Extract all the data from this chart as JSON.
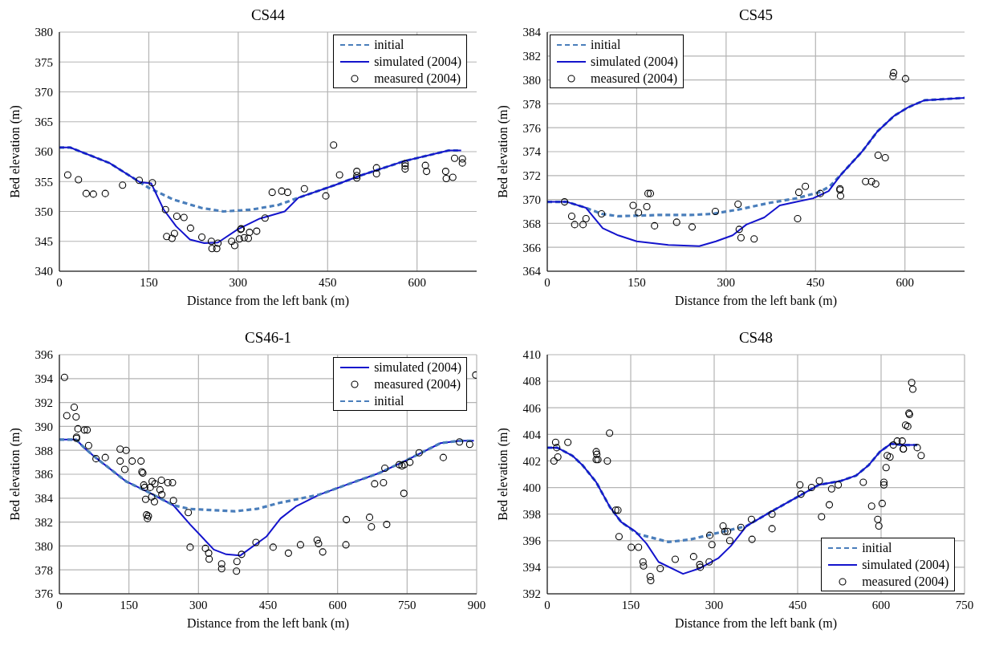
{
  "chart_data": [
    {
      "type": "line",
      "title": "CS44",
      "xlabel": "Distance from the left bank (m)",
      "ylabel": "Bed elevation (m)",
      "xlim": [
        0,
        700
      ],
      "xticks": [
        0,
        150,
        300,
        450,
        600
      ],
      "ylim": [
        340,
        380
      ],
      "yticks": [
        340,
        345,
        350,
        355,
        360,
        365,
        370,
        375,
        380
      ],
      "grid": true,
      "legend": "top right",
      "series": [
        {
          "name": "initial",
          "type": "line",
          "line_style": "dashed",
          "color": "#4a7ebb",
          "x": [
            0,
            18,
            84,
            135,
            149,
            191,
            238,
            275,
            322,
            368,
            401,
            462,
            508,
            578,
            653,
            674
          ],
          "values": [
            360.7,
            360.7,
            358.1,
            354.9,
            354.0,
            352.0,
            350.6,
            350.0,
            350.3,
            351.1,
            352.3,
            354.4,
            356.1,
            358.4,
            360.2,
            360.2
          ]
        },
        {
          "name": "simulated (2004)",
          "type": "line",
          "line_style": "solid",
          "color": "#1414cc",
          "x": [
            0,
            18,
            84,
            135,
            154,
            175,
            196,
            219,
            243,
            266,
            299,
            336,
            378,
            401,
            462,
            508,
            578,
            653,
            674
          ],
          "values": [
            360.7,
            360.7,
            358.1,
            354.9,
            354.7,
            350.3,
            347.5,
            345.3,
            344.7,
            344.8,
            347.0,
            348.8,
            350.0,
            352.3,
            354.4,
            356.1,
            358.4,
            360.2,
            360.2
          ]
        },
        {
          "name": "measured (2004)",
          "type": "scatter",
          "marker": "circle",
          "color": "#000000",
          "x": [
            14,
            32,
            45,
            57,
            77,
            106,
            134,
            156,
            178,
            180,
            189,
            193,
            197,
            209,
            220,
            239,
            255,
            256,
            264,
            266,
            289,
            294,
            304,
            305,
            302,
            310,
            317,
            319,
            331,
            345,
            357,
            373,
            383,
            411,
            447,
            460,
            470,
            499,
            499,
            499,
            532,
            532,
            580,
            580,
            580,
            614,
            616,
            648,
            649,
            660,
            663,
            676,
            676
          ],
          "values": [
            356.1,
            355.3,
            353.0,
            352.9,
            353.0,
            354.4,
            355.2,
            354.8,
            350.3,
            345.8,
            345.5,
            346.3,
            349.2,
            349.0,
            347.2,
            345.7,
            345.0,
            343.8,
            343.8,
            344.7,
            345.0,
            344.3,
            347.0,
            347.1,
            345.4,
            345.6,
            345.5,
            346.5,
            346.7,
            348.9,
            353.2,
            353.4,
            353.2,
            353.8,
            352.6,
            361.1,
            356.1,
            356.7,
            355.6,
            356.0,
            357.3,
            356.3,
            358.0,
            357.6,
            357.1,
            357.7,
            356.7,
            356.7,
            355.5,
            355.7,
            358.9,
            358.8,
            358.1
          ]
        }
      ]
    },
    {
      "type": "line",
      "title": "CS45",
      "xlabel": "Distance from the left bank (m)",
      "ylabel": "Bed elevation (m)",
      "xlim": [
        0,
        700
      ],
      "xticks": [
        0,
        150,
        300,
        450,
        600
      ],
      "ylim": [
        364,
        384
      ],
      "yticks": [
        364,
        366,
        368,
        370,
        372,
        374,
        376,
        378,
        380,
        382,
        384
      ],
      "grid": true,
      "legend": "top left",
      "series": [
        {
          "name": "initial",
          "type": "line",
          "line_style": "dashed",
          "color": "#4a7ebb",
          "x": [
            0,
            33,
            65,
            91,
            119,
            185,
            241,
            278,
            325,
            371,
            418,
            456,
            474,
            493,
            528,
            554,
            582,
            605,
            633,
            700
          ],
          "values": [
            369.8,
            369.8,
            369.3,
            368.8,
            368.6,
            368.7,
            368.7,
            368.8,
            369.2,
            369.7,
            370.1,
            370.6,
            371.1,
            372.1,
            374.0,
            375.7,
            377.0,
            377.7,
            378.3,
            378.5
          ]
        },
        {
          "name": "simulated (2004)",
          "type": "line",
          "line_style": "solid",
          "color": "#1414cc",
          "x": [
            0,
            33,
            65,
            93,
            119,
            150,
            203,
            255,
            283,
            311,
            334,
            364,
            390,
            418,
            446,
            472,
            493,
            528,
            554,
            582,
            605,
            633,
            700
          ],
          "values": [
            369.8,
            369.8,
            369.3,
            367.6,
            367.0,
            366.5,
            366.2,
            366.1,
            366.5,
            367.0,
            367.9,
            368.5,
            369.5,
            369.8,
            370.1,
            370.7,
            372.1,
            374.0,
            375.7,
            377.0,
            377.7,
            378.3,
            378.5
          ]
        },
        {
          "name": "measured (2004)",
          "type": "scatter",
          "marker": "circle",
          "color": "#000000",
          "x": [
            29,
            41,
            46,
            60,
            65,
            91,
            144,
            153,
            167,
            169,
            173,
            180,
            217,
            243,
            282,
            320,
            322,
            325,
            347,
            420,
            422,
            433,
            458,
            491,
            491,
            492,
            534,
            544,
            551,
            555,
            567,
            581,
            580,
            601
          ],
          "values": [
            369.8,
            368.6,
            367.9,
            367.9,
            368.4,
            368.8,
            369.5,
            368.9,
            369.4,
            370.5,
            370.5,
            367.8,
            368.1,
            367.7,
            369.0,
            369.6,
            367.5,
            366.8,
            366.7,
            368.4,
            370.6,
            371.1,
            370.5,
            370.9,
            370.8,
            370.3,
            371.5,
            371.5,
            371.3,
            373.7,
            373.5,
            380.6,
            380.3,
            380.1
          ]
        }
      ]
    },
    {
      "type": "line",
      "title": "CS46-1",
      "xlabel": "Distance from the left bank (m)",
      "ylabel": "Bed elevation (m)",
      "xlim": [
        0,
        900
      ],
      "xticks": [
        0,
        150,
        300,
        450,
        600,
        750,
        900
      ],
      "ylim": [
        376,
        396
      ],
      "yticks": [
        376,
        378,
        380,
        382,
        384,
        386,
        388,
        390,
        392,
        394,
        396
      ],
      "grid": true,
      "legend": "top right",
      "series": [
        {
          "name": "simulated (2004)",
          "type": "line",
          "line_style": "solid",
          "color": "#1414cc",
          "x": [
            0,
            36,
            54,
            78,
            144,
            192,
            246,
            282,
            333,
            360,
            390,
            447,
            477,
            510,
            561,
            618,
            690,
            750,
            822,
            864,
            894
          ],
          "values": [
            388.9,
            388.9,
            388.2,
            387.4,
            385.4,
            384.5,
            383.4,
            381.8,
            379.7,
            379.3,
            379.2,
            380.8,
            382.3,
            383.3,
            384.3,
            385.1,
            386.1,
            387.2,
            388.6,
            388.8,
            388.8
          ]
        },
        {
          "name": "measured (2004)",
          "type": "scatter",
          "marker": "circle",
          "color": "#000000",
          "x": [
            11,
            16,
            32,
            36,
            40,
            37,
            37,
            54,
            60,
            63,
            79,
            99,
            131,
            144,
            131,
            141,
            157,
            176,
            178,
            180,
            182,
            184,
            196,
            200,
            206,
            186,
            199,
            205,
            217,
            220,
            221,
            234,
            244,
            246,
            188,
            192,
            190,
            278,
            282,
            315,
            322,
            323,
            350,
            350,
            382,
            383,
            393,
            424,
            461,
            494,
            520,
            556,
            559,
            568,
            618,
            619,
            669,
            673,
            706,
            680,
            699,
            702,
            733,
            739,
            744,
            743,
            756,
            776,
            828,
            863,
            885,
            898
          ],
          "values": [
            394.1,
            390.9,
            391.6,
            390.8,
            389.8,
            389.1,
            389.0,
            389.7,
            389.7,
            388.4,
            387.3,
            387.4,
            388.1,
            388.0,
            387.1,
            386.4,
            387.1,
            387.1,
            386.2,
            386.1,
            385.1,
            384.9,
            384.9,
            385.4,
            385.2,
            383.9,
            384.1,
            383.7,
            384.7,
            385.5,
            384.3,
            385.3,
            385.3,
            383.8,
            382.6,
            382.5,
            382.3,
            382.8,
            379.9,
            379.8,
            379.4,
            378.9,
            378.5,
            378.1,
            377.9,
            378.7,
            379.3,
            380.3,
            379.9,
            379.4,
            380.1,
            380.5,
            380.2,
            379.5,
            380.1,
            382.2,
            382.4,
            381.6,
            381.8,
            385.2,
            385.3,
            386.5,
            386.8,
            386.7,
            386.8,
            384.4,
            387.0,
            387.8,
            387.4,
            388.7,
            388.5,
            394.3
          ]
        },
        {
          "name": "initial",
          "type": "line",
          "line_style": "dashed",
          "color": "#4a7ebb",
          "x": [
            0,
            36,
            54,
            78,
            144,
            192,
            246,
            282,
            330,
            378,
            426,
            474,
            561,
            618,
            690,
            750,
            822,
            864,
            894
          ],
          "values": [
            388.9,
            388.9,
            388.2,
            387.4,
            385.4,
            384.5,
            383.4,
            383.1,
            383.0,
            382.9,
            383.1,
            383.6,
            384.3,
            385.1,
            386.1,
            387.2,
            388.6,
            388.8,
            388.8
          ]
        }
      ]
    },
    {
      "type": "line",
      "title": "CS48",
      "xlabel": "Distance from the left bank (m)",
      "ylabel": "Bed elevation (m)",
      "xlim": [
        0,
        750
      ],
      "xticks": [
        0,
        150,
        300,
        450,
        600,
        750
      ],
      "ylim": [
        392,
        410
      ],
      "yticks": [
        392,
        394,
        396,
        398,
        400,
        402,
        404,
        406,
        408,
        410
      ],
      "grid": true,
      "legend": "bottom right",
      "series": [
        {
          "name": "initial",
          "type": "line",
          "line_style": "dashed",
          "color": "#4a7ebb",
          "x": [
            0,
            18,
            45,
            63,
            88,
            113,
            133,
            163,
            218,
            258,
            298,
            348,
            358,
            403,
            450,
            488,
            528,
            555,
            578,
            598,
            618,
            638,
            665
          ],
          "values": [
            403.0,
            403.0,
            402.4,
            401.7,
            400.4,
            398.5,
            397.4,
            396.5,
            395.9,
            396.1,
            396.5,
            397.0,
            397.1,
            398.2,
            399.3,
            400.2,
            400.5,
            400.9,
            401.7,
            402.7,
            403.3,
            403.2,
            403.2
          ]
        },
        {
          "name": "simulated (2004)",
          "type": "line",
          "line_style": "solid",
          "color": "#1414cc",
          "x": [
            0,
            18,
            45,
            63,
            88,
            113,
            133,
            158,
            178,
            200,
            244,
            273,
            308,
            330,
            358,
            403,
            450,
            488,
            528,
            555,
            578,
            598,
            618,
            638,
            665
          ],
          "values": [
            403.0,
            403.0,
            402.4,
            401.7,
            400.4,
            398.5,
            397.4,
            396.7,
            395.8,
            394.4,
            393.5,
            393.9,
            394.7,
            395.6,
            397.1,
            398.2,
            399.3,
            400.2,
            400.5,
            400.9,
            401.7,
            402.7,
            403.3,
            403.2,
            403.2
          ]
        },
        {
          "name": "measured (2004)",
          "type": "scatter",
          "marker": "circle",
          "color": "#000000",
          "x": [
            12,
            15,
            17,
            19,
            37,
            88,
            89,
            88,
            91,
            108,
            112,
            123,
            127,
            129,
            151,
            164,
            172,
            173,
            185,
            186,
            203,
            230,
            263,
            274,
            275,
            291,
            292,
            296,
            316,
            319,
            324,
            328,
            348,
            367,
            368,
            404,
            404,
            454,
            456,
            475,
            489,
            493,
            507,
            511,
            523,
            568,
            583,
            594,
            596,
            602,
            605,
            605,
            609,
            611,
            616,
            622,
            629,
            638,
            640,
            640,
            644,
            648,
            650,
            651,
            655,
            657,
            665,
            672
          ],
          "values": [
            402.0,
            403.4,
            403.0,
            402.3,
            403.4,
            402.7,
            402.5,
            402.1,
            402.1,
            402.0,
            404.1,
            398.3,
            398.3,
            396.3,
            395.5,
            395.5,
            394.4,
            394.1,
            393.3,
            393.0,
            393.9,
            394.6,
            394.8,
            394.2,
            394.0,
            394.4,
            396.4,
            395.7,
            397.1,
            396.7,
            396.7,
            396.0,
            397.0,
            397.6,
            396.1,
            398.0,
            396.9,
            400.2,
            399.5,
            400.0,
            400.5,
            397.8,
            398.7,
            399.9,
            400.2,
            400.4,
            398.6,
            397.6,
            397.1,
            398.8,
            400.4,
            400.2,
            401.5,
            402.4,
            402.3,
            403.2,
            403.5,
            403.5,
            402.9,
            402.9,
            404.7,
            404.6,
            405.6,
            405.5,
            407.9,
            407.4,
            403.0,
            402.4
          ]
        }
      ]
    }
  ]
}
